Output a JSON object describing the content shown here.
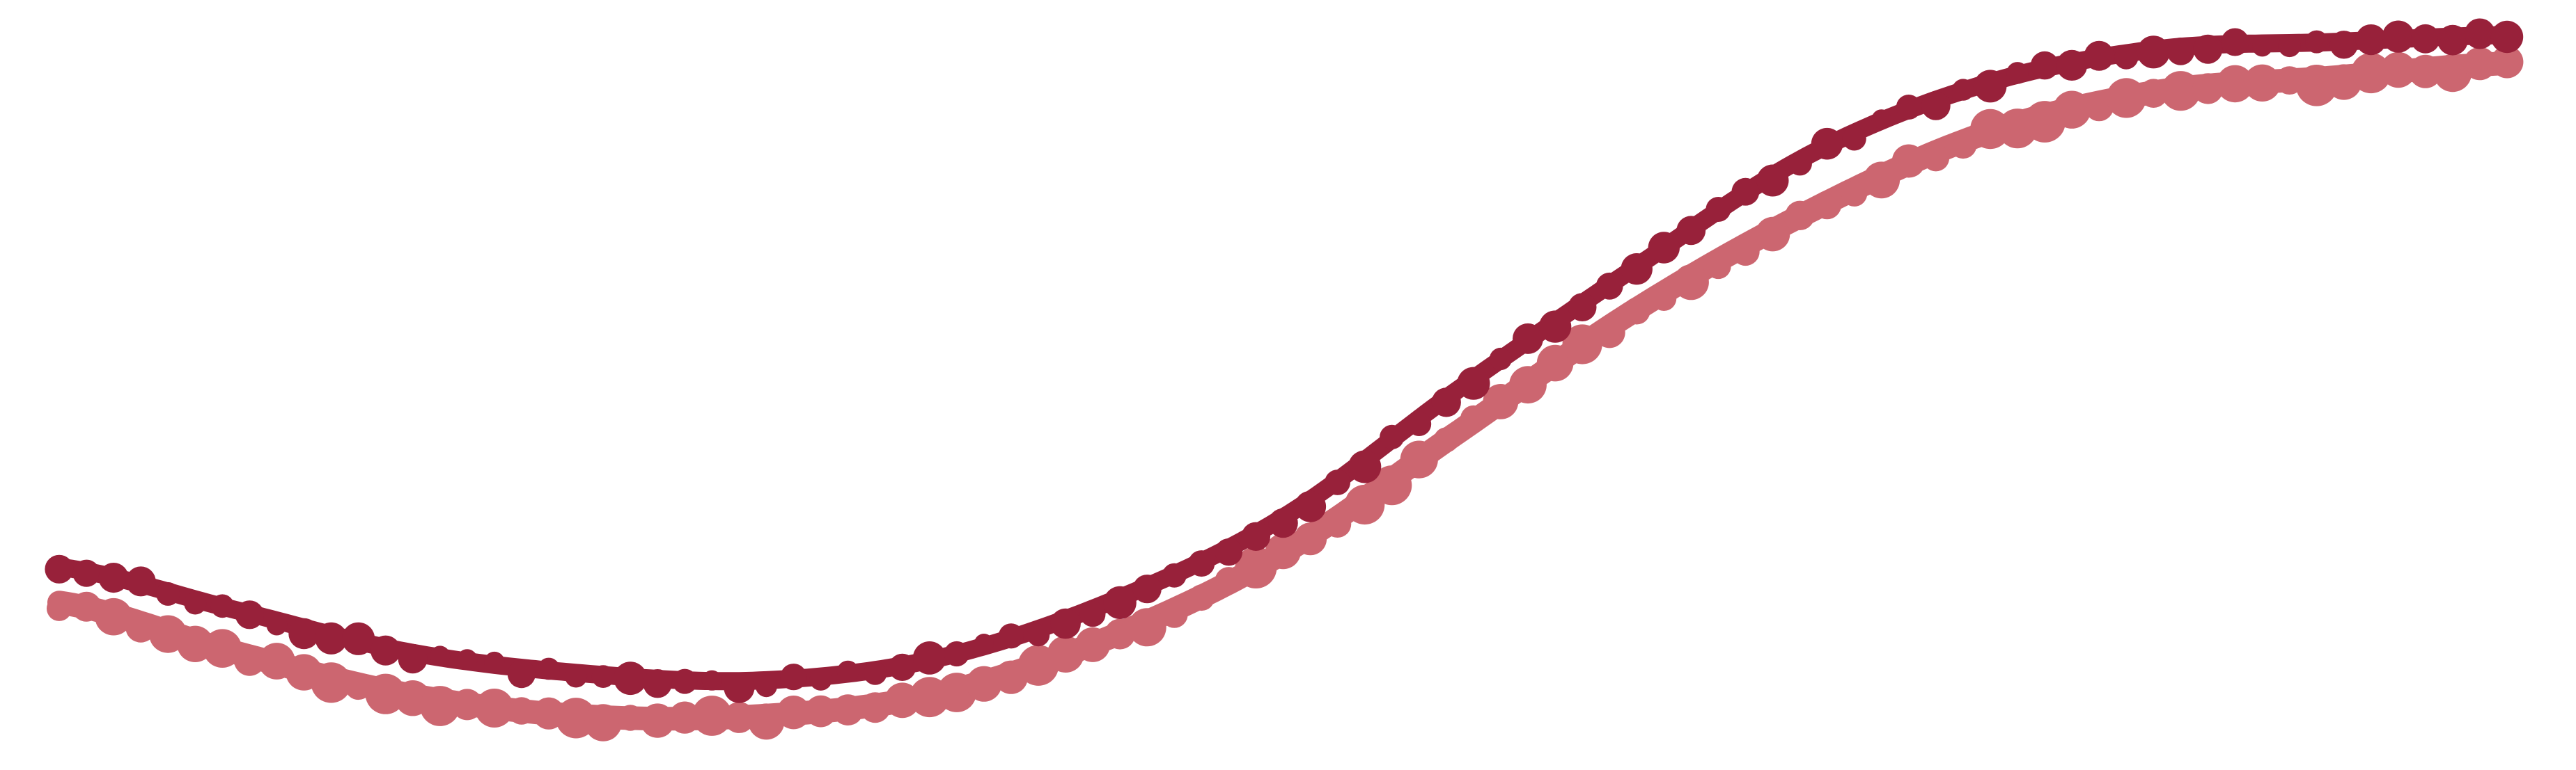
{
  "chart_data": {
    "type": "line",
    "title": "",
    "xlabel": "",
    "ylabel": "",
    "axes_visible": false,
    "grid": false,
    "legend": "none",
    "xlim": [
      0,
      140
    ],
    "ylim": [
      0,
      1
    ],
    "series": [
      {
        "color": "#cc6670",
        "x": [
          0,
          10,
          20,
          30,
          40,
          50,
          60,
          70,
          80,
          90,
          100,
          110,
          120,
          130,
          140
        ],
        "y": [
          0.19,
          0.12,
          0.06,
          0.03,
          0.03,
          0.06,
          0.14,
          0.26,
          0.43,
          0.6,
          0.74,
          0.85,
          0.91,
          0.93,
          0.95
        ]
      },
      {
        "color": "#98213a",
        "x": [
          0,
          10,
          20,
          30,
          40,
          50,
          60,
          70,
          80,
          90,
          100,
          110,
          120,
          130,
          140
        ],
        "y": [
          0.24,
          0.18,
          0.12,
          0.09,
          0.08,
          0.11,
          0.19,
          0.31,
          0.49,
          0.66,
          0.82,
          0.92,
          0.97,
          0.98,
          0.99
        ]
      }
    ]
  }
}
